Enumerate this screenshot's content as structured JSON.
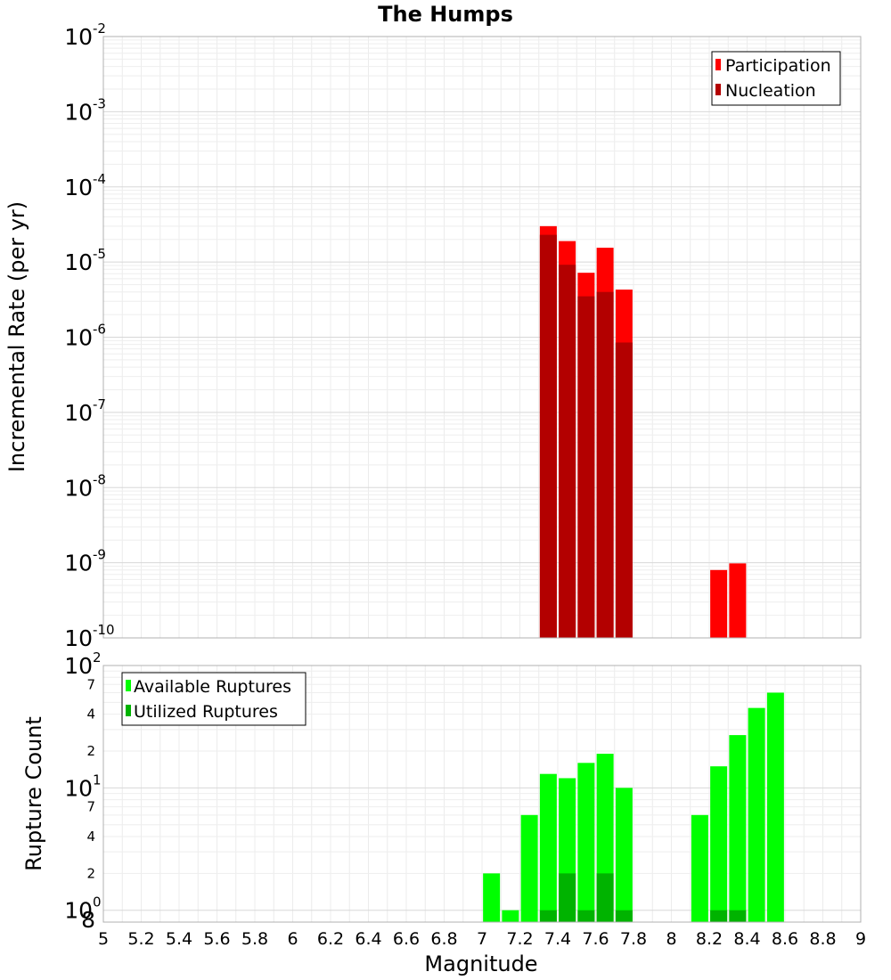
{
  "chart_data": [
    {
      "type": "bar",
      "title": "The Humps",
      "ylabel": "Incremental Rate (per yr)",
      "y_scale": "log",
      "ylim": [
        1e-10,
        0.01
      ],
      "grid": true,
      "legend_position": "top-right",
      "y_ticks": [
        {
          "base": "10",
          "exp": "-10"
        },
        {
          "base": "10",
          "exp": "-9"
        },
        {
          "base": "10",
          "exp": "-8"
        },
        {
          "base": "10",
          "exp": "-7"
        },
        {
          "base": "10",
          "exp": "-6"
        },
        {
          "base": "10",
          "exp": "-5"
        },
        {
          "base": "10",
          "exp": "-4"
        },
        {
          "base": "10",
          "exp": "-3"
        },
        {
          "base": "10",
          "exp": "-2"
        }
      ],
      "series": [
        {
          "name": "Participation",
          "color": "#ff0000",
          "points": [
            {
              "x": 7.35,
              "y": 3e-05
            },
            {
              "x": 7.45,
              "y": 1.9e-05
            },
            {
              "x": 7.55,
              "y": 7.2e-06
            },
            {
              "x": 7.65,
              "y": 1.55e-05
            },
            {
              "x": 7.75,
              "y": 4.3e-06
            },
            {
              "x": 8.25,
              "y": 8e-10
            },
            {
              "x": 8.35,
              "y": 9.8e-10
            }
          ]
        },
        {
          "name": "Nucleation",
          "color": "#b30000",
          "points": [
            {
              "x": 7.35,
              "y": 2.3e-05
            },
            {
              "x": 7.45,
              "y": 9.2e-06
            },
            {
              "x": 7.55,
              "y": 3.5e-06
            },
            {
              "x": 7.65,
              "y": 4e-06
            },
            {
              "x": 7.75,
              "y": 8.5e-07
            }
          ]
        }
      ]
    },
    {
      "type": "bar",
      "xlabel": "Magnitude",
      "ylabel": "Rupture Count",
      "y_scale": "log",
      "ylim": [
        0.8,
        100
      ],
      "xlim": [
        5,
        9
      ],
      "grid": true,
      "legend_position": "top-left",
      "x_ticks": [
        "5",
        "5.2",
        "5.4",
        "5.6",
        "5.8",
        "6",
        "6.2",
        "6.4",
        "6.6",
        "6.8",
        "7",
        "7.2",
        "7.4",
        "7.6",
        "7.8",
        "8",
        "8.2",
        "8.4",
        "8.6",
        "8.8",
        "9"
      ],
      "y_major_ticks": [
        {
          "base": "10",
          "exp": "0"
        },
        {
          "base": "10",
          "exp": "1"
        },
        {
          "base": "10",
          "exp": "2"
        }
      ],
      "y_minor_ticks": [
        "8",
        "2",
        "4",
        "7",
        "2",
        "4",
        "7"
      ],
      "series": [
        {
          "name": "Available Ruptures",
          "color": "#00ff00",
          "points": [
            {
              "x": 7.05,
              "y": 2
            },
            {
              "x": 7.15,
              "y": 1
            },
            {
              "x": 7.25,
              "y": 6
            },
            {
              "x": 7.35,
              "y": 13
            },
            {
              "x": 7.45,
              "y": 12
            },
            {
              "x": 7.55,
              "y": 16
            },
            {
              "x": 7.65,
              "y": 19
            },
            {
              "x": 7.75,
              "y": 10
            },
            {
              "x": 8.15,
              "y": 6
            },
            {
              "x": 8.25,
              "y": 15
            },
            {
              "x": 8.35,
              "y": 27
            },
            {
              "x": 8.45,
              "y": 45
            },
            {
              "x": 8.55,
              "y": 60
            }
          ]
        },
        {
          "name": "Utilized Ruptures",
          "color": "#00b300",
          "points": [
            {
              "x": 7.35,
              "y": 1
            },
            {
              "x": 7.45,
              "y": 2
            },
            {
              "x": 7.55,
              "y": 1
            },
            {
              "x": 7.65,
              "y": 2
            },
            {
              "x": 7.75,
              "y": 1
            },
            {
              "x": 8.25,
              "y": 1
            },
            {
              "x": 8.35,
              "y": 1
            }
          ]
        }
      ]
    }
  ]
}
